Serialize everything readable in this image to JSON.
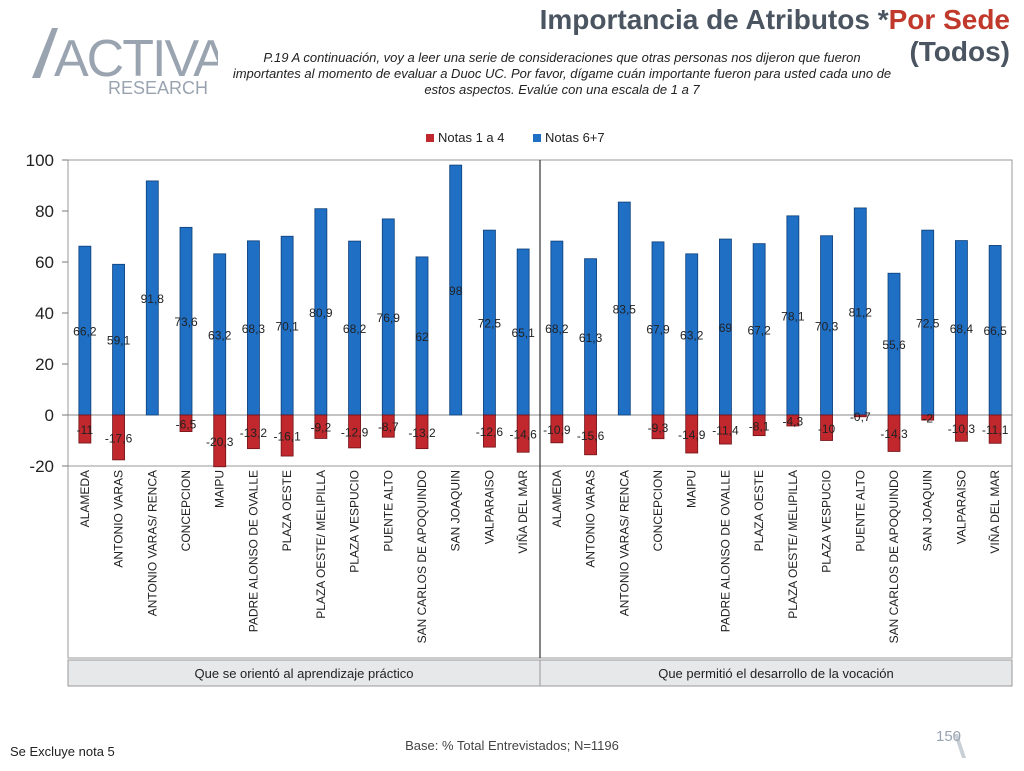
{
  "title": {
    "main": "Importancia de Atributos *",
    "accent": "Por Sede",
    "sub": "(Todos)"
  },
  "question": "P.19 A continuación, voy a leer una serie de consideraciones que otras personas nos dijeron que fueron importantes al momento de evaluar a Duoc UC. Por favor, dígame cuán importante fueron para usted cada uno de estos aspectos. Evalúe con una escala de 1 a 7",
  "logo": {
    "name": "ACTIVA",
    "sub": "RESEARCH"
  },
  "footer": {
    "base": "Base: % Total Entrevistados; N=1196",
    "note": "Se Excluye nota 5",
    "page": "150"
  },
  "colors": {
    "negative": "#c0282d",
    "positive": "#1f6fc5",
    "accent": "#c0392b"
  },
  "chart_data": {
    "type": "bar",
    "ylim": [
      -20,
      100
    ],
    "yticks": [
      -20,
      0,
      20,
      40,
      60,
      80,
      100
    ],
    "legend_position": "top",
    "series": [
      {
        "name": "Notas 1 a 4",
        "color": "#c0282d"
      },
      {
        "name": "Notas 6+7",
        "color": "#1f6fc5"
      }
    ],
    "groups": [
      {
        "label": "Que se orientó al aprendizaje práctico",
        "categories": [
          "ALAMEDA",
          "ANTONIO VARAS",
          "ANTONIO VARAS/ RENCA",
          "CONCEPCION",
          "MAIPU",
          "PADRE ALONSO DE OVALLE",
          "PLAZA OESTE",
          "PLAZA OESTE/ MELIPILLA",
          "PLAZA VESPUCIO",
          "PUENTE ALTO",
          "SAN CARLOS DE APOQUINDO",
          "SAN JOAQUIN",
          "VALPARAISO",
          "VIÑA DEL MAR"
        ],
        "positive": [
          66.2,
          59.1,
          91.8,
          73.6,
          63.2,
          68.3,
          70.1,
          80.9,
          68.2,
          76.9,
          62,
          98,
          72.5,
          65.1
        ],
        "positive_labels": [
          "66,2",
          "59,1",
          "91,8",
          "73,6",
          "63,2",
          "68,3",
          "70,1",
          "80,9",
          "68,2",
          "76,9",
          "62",
          "98",
          "72,5",
          "65,1"
        ],
        "negative": [
          -11,
          -17.6,
          null,
          -6.5,
          -20.3,
          -13.2,
          -16.1,
          -9.2,
          -12.9,
          -8.7,
          -13.2,
          null,
          -12.6,
          -14.6
        ],
        "negative_labels": [
          "-11",
          "-17,6",
          "",
          "-6,5",
          "-20,3",
          "-13,2",
          "-16,1",
          "-9,2",
          "-12,9",
          "-8,7",
          "-13,2",
          "",
          "-12,6",
          "-14,6"
        ]
      },
      {
        "label": "Que permitió el desarrollo de la vocación",
        "categories": [
          "ALAMEDA",
          "ANTONIO VARAS",
          "ANTONIO VARAS/ RENCA",
          "CONCEPCION",
          "MAIPU",
          "PADRE ALONSO DE OVALLE",
          "PLAZA OESTE",
          "PLAZA OESTE/ MELIPILLA",
          "PLAZA VESPUCIO",
          "PUENTE ALTO",
          "SAN CARLOS DE APOQUINDO",
          "SAN JOAQUIN",
          "VALPARAISO",
          "VIÑA DEL MAR"
        ],
        "positive": [
          68.2,
          61.3,
          83.5,
          67.9,
          63.2,
          69,
          67.2,
          78.1,
          70.3,
          81.2,
          55.6,
          72.5,
          68.4,
          66.5
        ],
        "positive_labels": [
          "68,2",
          "61,3",
          "83,5",
          "67,9",
          "63,2",
          "69",
          "67,2",
          "78,1",
          "70,3",
          "81,2",
          "55,6",
          "72,5",
          "68,4",
          "66,5"
        ],
        "negative": [
          -10.9,
          -15.6,
          null,
          -9.3,
          -14.9,
          -11.4,
          -8.1,
          -4.3,
          -10,
          -0.7,
          -14.3,
          -2,
          -10.3,
          -11.1
        ],
        "negative_labels": [
          "-10,9",
          "-15,6",
          "",
          "-9,3",
          "-14,9",
          "-11,4",
          "-8,1",
          "-4,3",
          "-10",
          "-0,7",
          "-14,3",
          "-2",
          "-10,3",
          "-11,1"
        ]
      }
    ]
  }
}
